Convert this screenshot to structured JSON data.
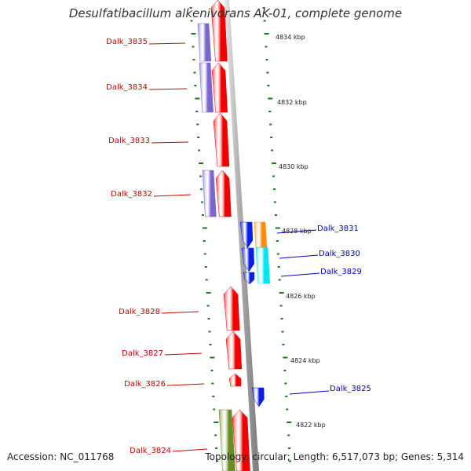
{
  "title": "Desulfatibacillum alkenivorans AK-01, complete genome",
  "footer": {
    "accession": "Accession: NC_011768",
    "summary": "Topology: circular; Length: 6,517,073 bp; Genes: 5,314"
  },
  "colors": {
    "red": "#f00000",
    "blue": "#0a1ee6",
    "purple": "#7b66cc",
    "orange": "#ff8c10",
    "cyan": "#00e6f0",
    "olive": "#6b8e23",
    "tick": "#1a7a1a",
    "label_red": "#cc0000",
    "label_blue": "#0000cc"
  },
  "scale_labels": [
    "4834 kbp",
    "4832 kbp",
    "4830 kbp",
    "4828 kbp",
    "4826 kbp",
    "4824 kbp",
    "4822 kbp"
  ],
  "genes": [
    {
      "id": "Dalk_3835",
      "side": "left"
    },
    {
      "id": "Dalk_3834",
      "side": "left"
    },
    {
      "id": "Dalk_3833",
      "side": "left"
    },
    {
      "id": "Dalk_3832",
      "side": "left"
    },
    {
      "id": "Dalk_3831",
      "side": "right"
    },
    {
      "id": "Dalk_3830",
      "side": "right"
    },
    {
      "id": "Dalk_3829",
      "side": "right"
    },
    {
      "id": "Dalk_3828",
      "side": "left"
    },
    {
      "id": "Dalk_3827",
      "side": "left"
    },
    {
      "id": "Dalk_3826",
      "side": "left"
    },
    {
      "id": "Dalk_3825",
      "side": "right"
    },
    {
      "id": "Dalk_3824",
      "side": "left"
    }
  ]
}
